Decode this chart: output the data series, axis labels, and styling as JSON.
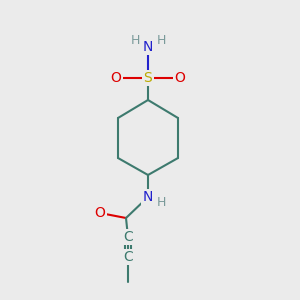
{
  "bg_color": "#ebebeb",
  "atom_colors": {
    "C": "#3d7a6e",
    "N": "#2222cc",
    "O": "#dd0000",
    "S": "#bbaa00",
    "H": "#7a9a9a"
  },
  "bond_color": "#3d7a6e",
  "font_size_atom": 10,
  "font_size_H": 9,
  "lw": 1.5
}
